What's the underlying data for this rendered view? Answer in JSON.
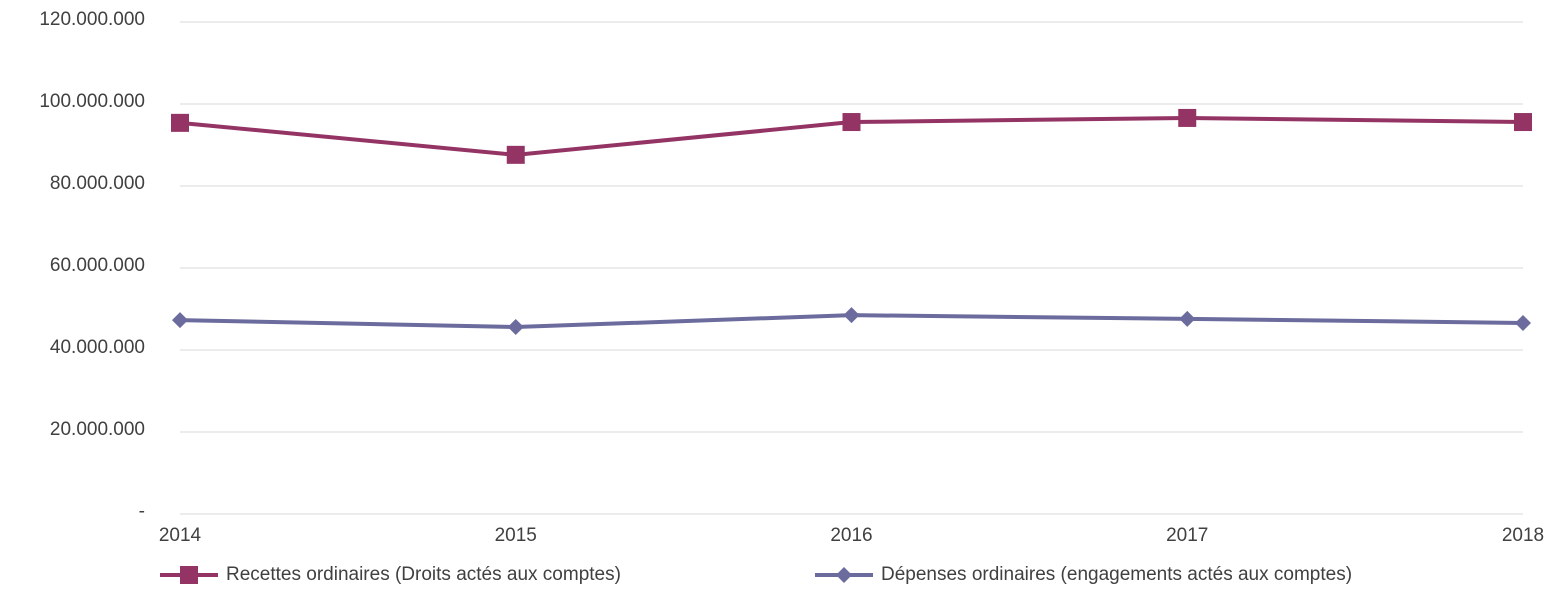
{
  "chart_data": {
    "type": "line",
    "categories": [
      "2014",
      "2015",
      "2016",
      "2017",
      "2018"
    ],
    "series": [
      {
        "name": "Recettes ordinaires (Droits actés aux comptes)",
        "color": "#943464",
        "marker": "square",
        "values": [
          95400000,
          87600000,
          95600000,
          96600000,
          95600000
        ]
      },
      {
        "name": "Dépenses ordinaires (engagements actés aux comptes)",
        "color": "#6b6b9d",
        "marker": "diamond",
        "values": [
          47300000,
          45600000,
          48500000,
          47600000,
          46600000
        ]
      }
    ],
    "ylim": [
      0,
      120000000
    ],
    "yticks": [
      {
        "value": 0,
        "label": "-"
      },
      {
        "value": 20000000,
        "label": "20.000.000"
      },
      {
        "value": 40000000,
        "label": "40.000.000"
      },
      {
        "value": 60000000,
        "label": "60.000.000"
      },
      {
        "value": 80000000,
        "label": "80.000.000"
      },
      {
        "value": 100000000,
        "label": "100.000.000"
      },
      {
        "value": 120000000,
        "label": "120.000.000"
      }
    ],
    "grid": true,
    "legend": "bottom"
  }
}
